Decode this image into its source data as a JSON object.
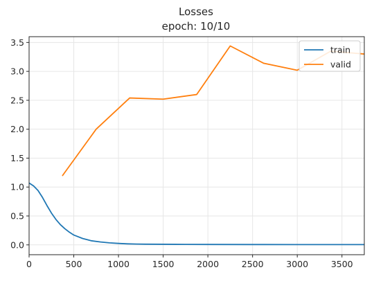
{
  "chart_data": {
    "type": "line",
    "title": "Losses",
    "subtitle": "epoch: 10/10",
    "xlabel": "",
    "ylabel": "",
    "xlim": [
      0,
      3750
    ],
    "ylim": [
      -0.17,
      3.6
    ],
    "grid": true,
    "legend_position": "top-right",
    "x_ticks": [
      0,
      500,
      1000,
      1500,
      2000,
      2500,
      3000,
      3500
    ],
    "y_ticks": [
      0.0,
      0.5,
      1.0,
      1.5,
      2.0,
      2.5,
      3.0,
      3.5
    ],
    "x_tick_labels": [
      "0",
      "500",
      "1000",
      "1500",
      "2000",
      "2500",
      "3000",
      "3500"
    ],
    "y_tick_labels": [
      "0.0",
      "0.5",
      "1.0",
      "1.5",
      "2.0",
      "2.5",
      "3.0",
      "3.5"
    ],
    "series": [
      {
        "name": "train",
        "color": "#1f77b4",
        "x": [
          0,
          50,
          100,
          150,
          200,
          250,
          300,
          350,
          400,
          450,
          500,
          600,
          700,
          800,
          900,
          1000,
          1100,
          1200,
          1300,
          1500,
          1750,
          2000,
          2500,
          3000,
          3500,
          3750
        ],
        "y": [
          1.07,
          1.02,
          0.94,
          0.82,
          0.68,
          0.55,
          0.44,
          0.35,
          0.28,
          0.22,
          0.17,
          0.11,
          0.07,
          0.05,
          0.035,
          0.025,
          0.018,
          0.014,
          0.012,
          0.01,
          0.008,
          0.007,
          0.006,
          0.005,
          0.005,
          0.005
        ]
      },
      {
        "name": "valid",
        "color": "#ff7f0e",
        "x": [
          375,
          750,
          1125,
          1500,
          1875,
          2250,
          2625,
          3000,
          3375,
          3750
        ],
        "y": [
          1.2,
          2.0,
          2.54,
          2.52,
          2.6,
          3.44,
          3.14,
          3.02,
          3.35,
          3.3
        ]
      }
    ]
  }
}
